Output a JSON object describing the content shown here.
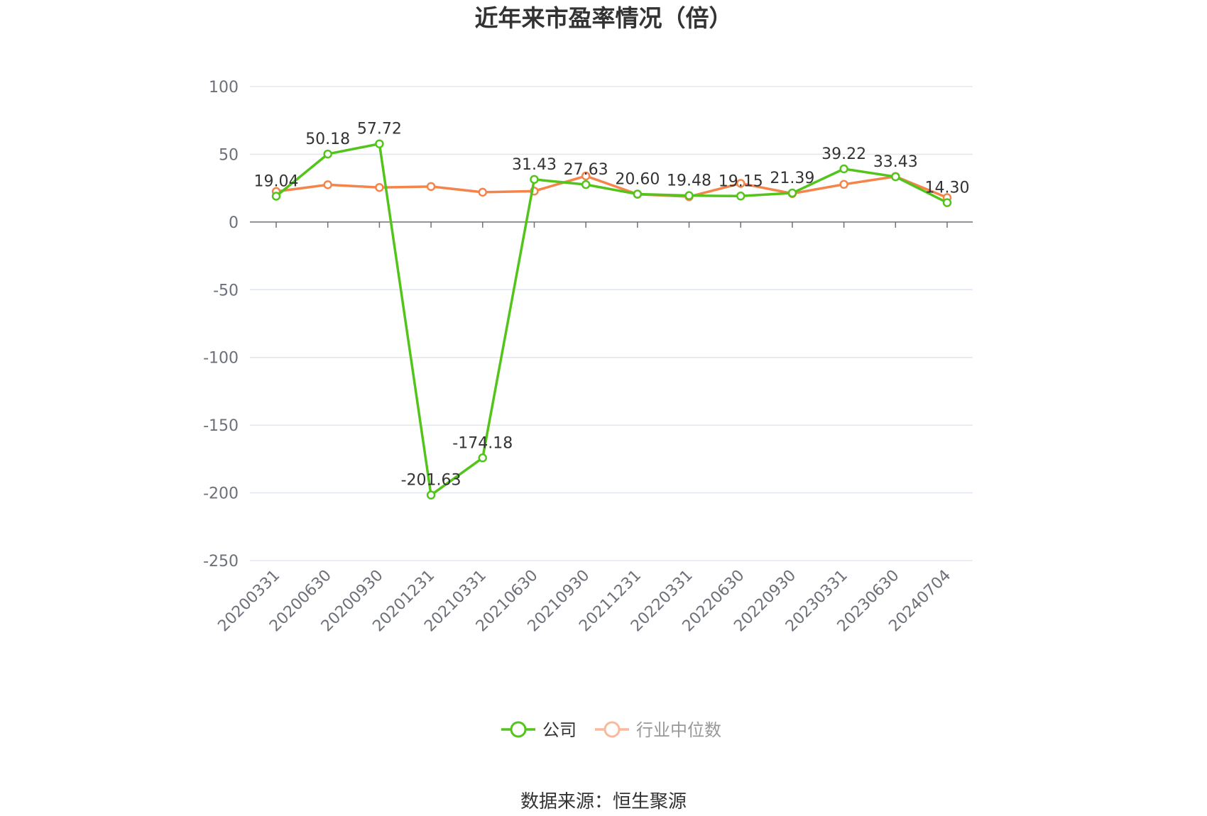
{
  "source_text": "数据来源：恒生聚源",
  "chart_data": {
    "type": "line",
    "title": "近年来市盈率情况（倍）",
    "xlabel": "",
    "ylabel": "",
    "categories": [
      "20200331",
      "20200630",
      "20200930",
      "20201231",
      "20210331",
      "20210630",
      "20210930",
      "20211231",
      "20220331",
      "20220630",
      "20220930",
      "20230331",
      "20230630",
      "20240704"
    ],
    "ylim": [
      -250,
      100
    ],
    "yticks": [
      100,
      50,
      0,
      -50,
      -100,
      -150,
      -200,
      -250
    ],
    "grid": true,
    "legend_position": "bottom",
    "series": [
      {
        "name": "公司",
        "color": "#52c41a",
        "values": [
          19.04,
          50.18,
          57.72,
          -201.63,
          -174.18,
          31.43,
          27.63,
          20.6,
          19.48,
          19.15,
          21.39,
          39.22,
          33.43,
          14.3
        ],
        "labels": [
          "19.04",
          "50.18",
          "57.72",
          "-201.63",
          "-174.18",
          "31.43",
          "27.63",
          "20.60",
          "19.48",
          "19.15",
          "21.39",
          "39.22",
          "33.43",
          "14.30"
        ]
      },
      {
        "name": "行业中位数",
        "color": "#f5844b",
        "values": [
          22.5,
          27.5,
          25.5,
          26.2,
          22.0,
          22.8,
          34.0,
          20.5,
          18.7,
          28.5,
          21.0,
          27.8,
          33.6,
          18.0
        ]
      }
    ]
  }
}
